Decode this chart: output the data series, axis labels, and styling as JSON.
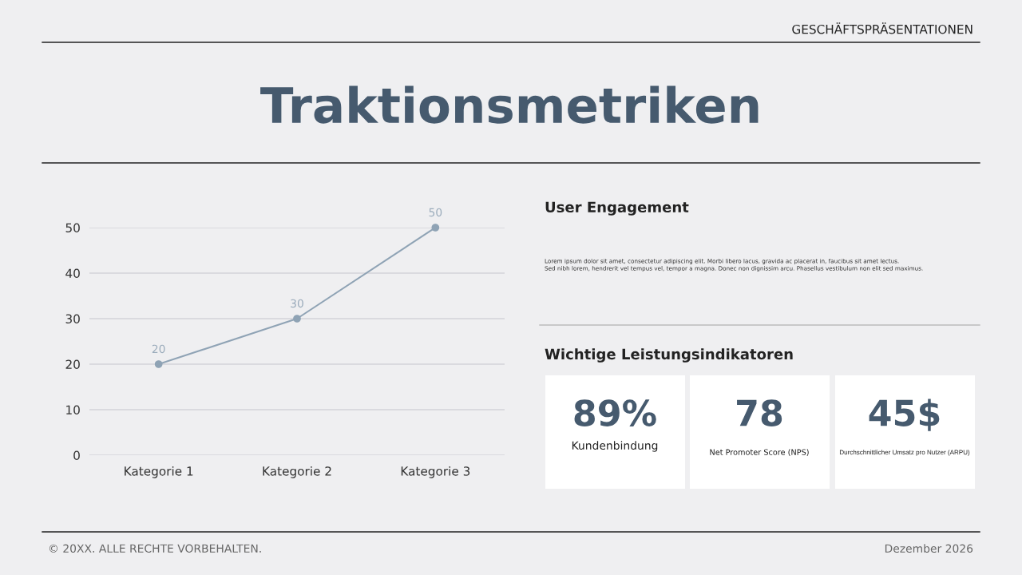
{
  "chart_data": [
    {
      "type": "line",
      "title": "Traktionsmetriken",
      "categories": [
        "Kategorie 1",
        "Kategorie 2",
        "Kategorie 3"
      ],
      "series": [
        {
          "color": "#8fa3b5",
          "values": [
            20,
            30,
            50
          ]
        }
      ],
      "ylim": [
        0,
        50
      ],
      "yticks": [
        0,
        10,
        20,
        30,
        40,
        50
      ],
      "grid": "y",
      "marker": "circle",
      "line_style": "solid",
      "data_labels": true,
      "annotations": [
        "GESCHÄFTSPRÄSENTATIONEN",
        "© 20XX. ALLE RECHTE VORBEHALTEN.",
        "Dezember 2026"
      ]
    },
    {
      "type": "other",
      "title": "User Engagement",
      "annotations": [
        "Lorem ipsum dolor sit amet, consectetur adipiscing elit. Morbi libero lacus, gravida ac placerat in, faucibus sit amet lectus.\nSed nibh lorem, hendrerit vel tempus vel, tempor a magna. Donec non dignissim arcu. Phasellus vestibulum non elit sed maximus.",
        "Wichtige Leistungsindikatoren",
        "89%",
        "Kundenbindung",
        "78",
        "Net Promoter Score (NPS)",
        "45$",
        "Durchschnittlicher Umsatz pro Nutzer (ARPU)"
      ]
    }
  ]
}
